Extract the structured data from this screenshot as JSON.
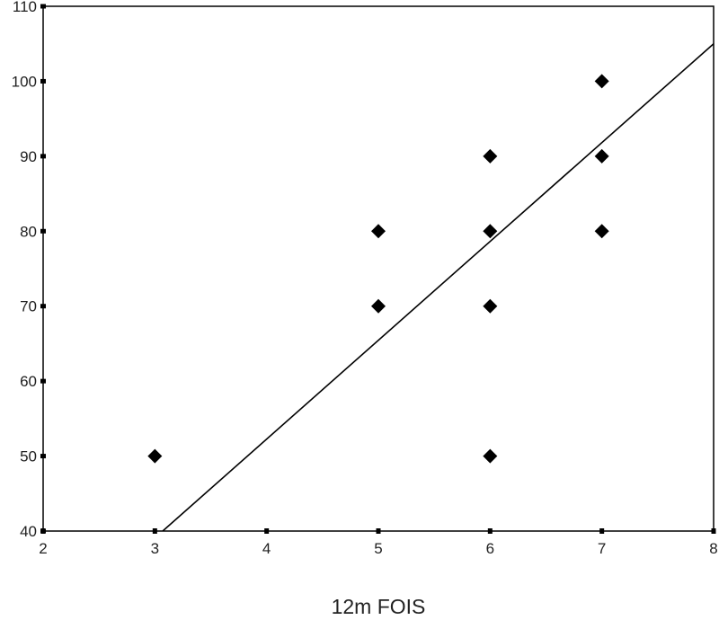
{
  "chart_data": {
    "type": "scatter",
    "title": "",
    "xlabel": "12m FOIS",
    "ylabel": "",
    "xlim": [
      2,
      8
    ],
    "ylim": [
      40,
      110
    ],
    "xticks": [
      "2",
      "3",
      "4",
      "5",
      "6",
      "7",
      "8"
    ],
    "yticks": [
      "40",
      "50",
      "60",
      "70",
      "80",
      "90",
      "100",
      "110"
    ],
    "grid": false,
    "legend": "none",
    "marker": "diamond",
    "colors": {
      "marker": "#000000",
      "line": "#000000",
      "axis": "#000000"
    },
    "points": [
      {
        "x": 3,
        "y": 50
      },
      {
        "x": 5,
        "y": 70
      },
      {
        "x": 5,
        "y": 80
      },
      {
        "x": 6,
        "y": 50
      },
      {
        "x": 6,
        "y": 70
      },
      {
        "x": 6,
        "y": 80
      },
      {
        "x": 6,
        "y": 90
      },
      {
        "x": 7,
        "y": 80
      },
      {
        "x": 7,
        "y": 90
      },
      {
        "x": 7,
        "y": 100
      }
    ],
    "fit_line": {
      "x": [
        3.07,
        8
      ],
      "y": [
        40,
        105
      ]
    }
  }
}
